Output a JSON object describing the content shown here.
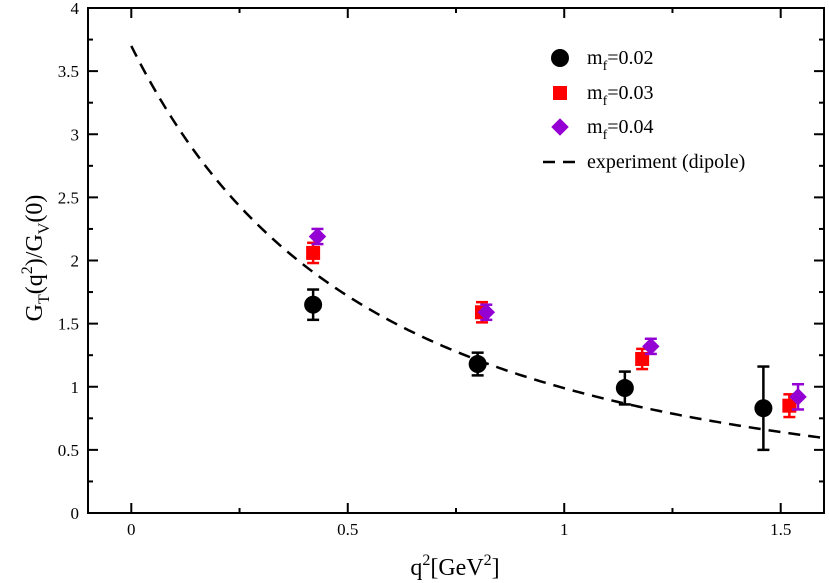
{
  "chart_data": {
    "type": "scatter",
    "title": "",
    "xlabel": {
      "main": "q",
      "sup": "2",
      "bracket_open": "[",
      "unit": "GeV",
      "unit_sup": "2",
      "bracket_close": "]"
    },
    "ylabel": {
      "g": "G",
      "t": "T",
      "open1": "(q",
      "sup": "2",
      "close1": ")/G",
      "v": "V",
      "zero": "(0)"
    },
    "xlim": [
      -0.1,
      1.6
    ],
    "ylim": [
      0,
      4
    ],
    "xticks": [
      0,
      0.5,
      1,
      1.5
    ],
    "xtick_labels": [
      "0",
      "0.5",
      "1",
      "1.5"
    ],
    "yticks": [
      0,
      0.5,
      1,
      1.5,
      2,
      2.5,
      3,
      3.5,
      4
    ],
    "ytick_labels": [
      "0",
      "0.5",
      "1",
      "1.5",
      "2",
      "2.5",
      "3",
      "3.5",
      "4"
    ],
    "series": [
      {
        "name": "m_f=0.02",
        "label_base": "m",
        "label_sub": "f",
        "label_value": "=0.02",
        "marker": "circle",
        "color": "#000000",
        "points": [
          {
            "x": 0.42,
            "y": 1.65,
            "err": 0.12
          },
          {
            "x": 0.8,
            "y": 1.18,
            "err": 0.09
          },
          {
            "x": 1.14,
            "y": 0.99,
            "err": 0.13
          },
          {
            "x": 1.46,
            "y": 0.83,
            "err": 0.33
          }
        ]
      },
      {
        "name": "m_f=0.03",
        "label_base": "m",
        "label_sub": "f",
        "label_value": "=0.03",
        "marker": "square",
        "color": "#ff0000",
        "points": [
          {
            "x": 0.42,
            "y": 2.06,
            "err": 0.08
          },
          {
            "x": 0.81,
            "y": 1.59,
            "err": 0.08
          },
          {
            "x": 1.18,
            "y": 1.22,
            "err": 0.08
          },
          {
            "x": 1.52,
            "y": 0.85,
            "err": 0.09
          }
        ]
      },
      {
        "name": "m_f=0.04",
        "label_base": "m",
        "label_sub": "f",
        "label_value": "=0.04",
        "marker": "diamond",
        "color": "#9400d3",
        "points": [
          {
            "x": 0.43,
            "y": 2.19,
            "err": 0.06
          },
          {
            "x": 0.82,
            "y": 1.59,
            "err": 0.06
          },
          {
            "x": 1.2,
            "y": 1.32,
            "err": 0.06
          },
          {
            "x": 1.54,
            "y": 0.92,
            "err": 0.1
          }
        ]
      }
    ],
    "curve": {
      "name": "experiment (dipole)",
      "style": "dashed",
      "color": "#000000",
      "formula": "dipole",
      "y0": 3.7,
      "mass_sq": 1.07
    },
    "legend_position": "top-right",
    "grid": false
  }
}
